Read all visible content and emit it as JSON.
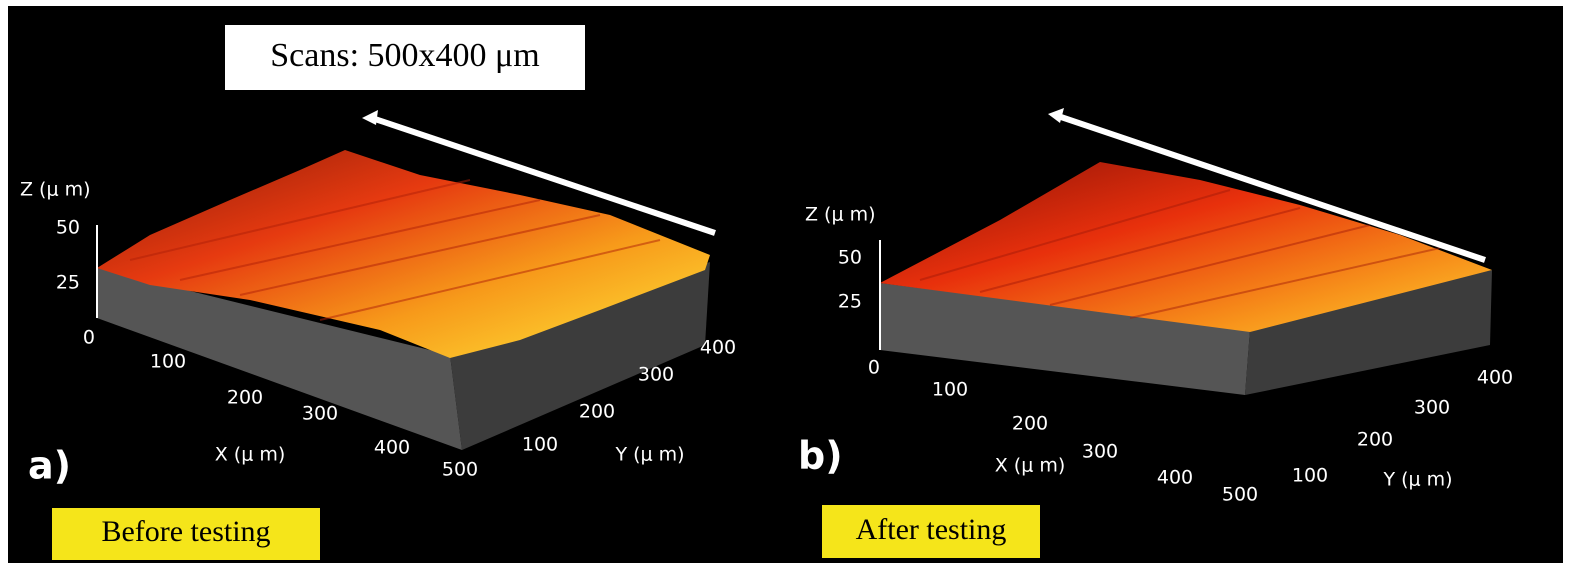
{
  "banner": "Scans: 500x400 μm",
  "panels": [
    {
      "label": "a)",
      "caption": "Before testing",
      "z_axis_label": "Z (μ m)",
      "z_ticks": [
        "0",
        "25",
        "50"
      ],
      "x_axis_label": "X (μ m)",
      "x_ticks": [
        "100",
        "200",
        "300",
        "400",
        "500"
      ],
      "y_axis_label": "Y (μ m)",
      "y_ticks": [
        "100",
        "200",
        "300",
        "400"
      ]
    },
    {
      "label": "b)",
      "caption": "After testing",
      "z_axis_label": "Z (μ m)",
      "z_ticks": [
        "0",
        "25",
        "50"
      ],
      "x_axis_label": "X (μ m)",
      "x_ticks": [
        "100",
        "200",
        "300",
        "400",
        "500"
      ],
      "y_axis_label": "Y (μ m)",
      "y_ticks": [
        "100",
        "200",
        "300",
        "400"
      ]
    }
  ]
}
